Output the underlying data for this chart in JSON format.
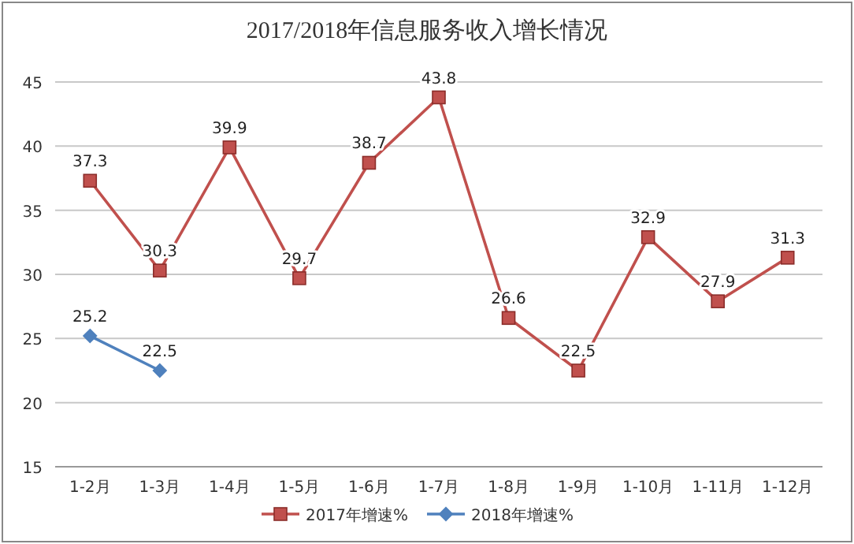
{
  "chart_data": {
    "type": "line",
    "title": "2017/2018年信息服务收入增长情况",
    "categories": [
      "1-2月",
      "1-3月",
      "1-4月",
      "1-5月",
      "1-6月",
      "1-7月",
      "1-8月",
      "1-9月",
      "1-10月",
      "1-11月",
      "1-12月"
    ],
    "series": [
      {
        "name": "2017年增速%",
        "color": "#c0504d",
        "marker": "square",
        "values": [
          37.3,
          30.3,
          39.9,
          29.7,
          38.7,
          43.8,
          26.6,
          22.5,
          32.9,
          27.9,
          31.3
        ]
      },
      {
        "name": "2018年增速%",
        "color": "#4f81bd",
        "marker": "diamond",
        "values": [
          25.2,
          22.5,
          null,
          null,
          null,
          null,
          null,
          null,
          null,
          null,
          null
        ]
      }
    ],
    "ylim": [
      15,
      45
    ],
    "yticks": [
      15,
      20,
      25,
      30,
      35,
      40,
      45
    ],
    "grid": "y",
    "legend": "bottom",
    "data_labels": true
  }
}
